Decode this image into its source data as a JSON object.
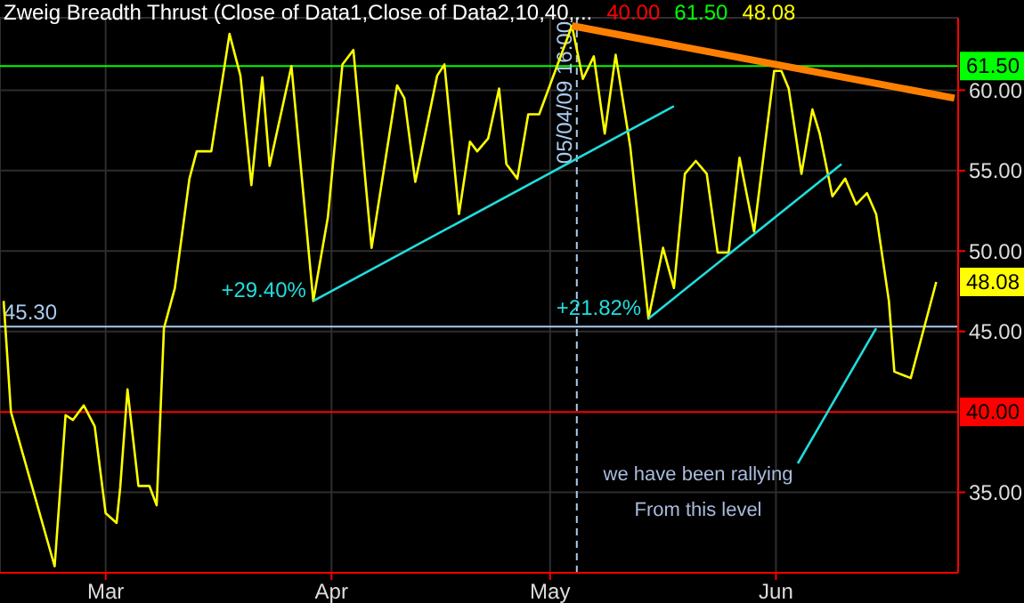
{
  "chart_data": {
    "type": "line",
    "title": "Zweig Breadth Thrust (Close of Data1,Close of Data2,10,40,...",
    "xlim": [
      "--02-14T12:00",
      "--06-26"
    ],
    "xticks": [
      {
        "value": "--03-01",
        "label": "Mar"
      },
      {
        "value": "--04-01",
        "label": "Apr"
      },
      {
        "value": "--05-01",
        "label": "May"
      },
      {
        "value": "--06-01",
        "label": "Jun"
      }
    ],
    "ylim": [
      30,
      64.5
    ],
    "yticks": [
      {
        "value": 35,
        "label": "35.00"
      },
      {
        "value": 45,
        "label": "45.00"
      },
      {
        "value": 50,
        "label": "50.00"
      },
      {
        "value": 55,
        "label": "55.00"
      },
      {
        "value": 60,
        "label": "60.00"
      }
    ],
    "grid": true,
    "marker": "none",
    "line_style": "solid",
    "series": [
      {
        "color": "#ffff00",
        "x": [
          "--02-15",
          "--02-16",
          "--02-22",
          "--02-23T12:00",
          "--02-24T12:00",
          "--02-26",
          "--02-27T12:00",
          "--03-01",
          "--03-02T12:00",
          "--03-03",
          "--03-04",
          "--03-05T12:00",
          "--03-07",
          "--03-08",
          "--03-09",
          "--03-10T12:00",
          "--03-12T12:00",
          "--03-13T12:00",
          "--03-15T12:00",
          "--03-18",
          "--03-19T12:00",
          "--03-21",
          "--03-22T12:00",
          "--03-23T12:00",
          "--03-26T12:00",
          "--03-29T12:00",
          "--03-31T12:00",
          "--04-02T12:00",
          "--04-04",
          "--04-06T12:00",
          "--04-10",
          "--04-11",
          "--04-12T12:00",
          "--04-15T12:00",
          "--04-16T12:00",
          "--04-18T12:00",
          "--04-20",
          "--04-21",
          "--04-22T12:00",
          "--04-24",
          "--04-25",
          "--04-26T12:00",
          "--04-28",
          "--04-29T12:00",
          "--05-04",
          "--05-05T12:00",
          "--05-07",
          "--05-08T12:00",
          "--05-10",
          "--05-12",
          "--05-14T12:00",
          "--05-16T12:00",
          "--05-18",
          "--05-19T12:00",
          "--05-21",
          "--05-22T12:00",
          "--05-24",
          "--05-25T12:00",
          "--05-27",
          "--05-29",
          "--05-31T18:00",
          "--06-01T18:00",
          "--06-02T18:00",
          "--06-04T12:00",
          "--06-06",
          "--06-07",
          "--06-08T18:00",
          "--06-10T12:00",
          "--06-12",
          "--06-13T12:00",
          "--06-14T18:00",
          "--06-16T12:00",
          "--06-17T06:00",
          "--06-19T12:00",
          "--06-23"
        ],
        "values": [
          46.9,
          40.0,
          30.4,
          39.8,
          39.5,
          40.4,
          39.1,
          33.7,
          33.1,
          35.3,
          41.4,
          35.4,
          35.4,
          34.2,
          45.2,
          47.7,
          54.5,
          56.2,
          56.2,
          63.5,
          60.9,
          54.1,
          60.8,
          55.3,
          61.5,
          46.9,
          52.1,
          61.6,
          62.5,
          50.2,
          60.3,
          59.5,
          54.3,
          60.9,
          61.6,
          52.3,
          56.8,
          56.2,
          57.0,
          60.1,
          55.4,
          54.5,
          58.5,
          58.5,
          64.0,
          60.7,
          62.1,
          57.3,
          62.2,
          56.5,
          45.8,
          50.2,
          47.7,
          54.8,
          55.6,
          54.8,
          49.9,
          49.9,
          55.8,
          51.2,
          61.2,
          61.2,
          60.1,
          54.8,
          58.8,
          57.3,
          53.4,
          54.5,
          52.9,
          53.6,
          52.3,
          46.9,
          42.5,
          42.1,
          48.08
        ],
        "value_labels": [
          null,
          null,
          null,
          null,
          null,
          null,
          null,
          null,
          null,
          null,
          null,
          null,
          null,
          null,
          null,
          null,
          null,
          null,
          null,
          null,
          null,
          null,
          null,
          null,
          null,
          null,
          null,
          null,
          null,
          null,
          null,
          null,
          null,
          null,
          null,
          null,
          null,
          null,
          null,
          null,
          null,
          null,
          null,
          null,
          null,
          null,
          null,
          null,
          null,
          null,
          null,
          null,
          null,
          null,
          null,
          null,
          null,
          null,
          null,
          null,
          null,
          null,
          null,
          null,
          null,
          null,
          null,
          null,
          null,
          null,
          null,
          null,
          null,
          null,
          "48.08"
        ]
      },
      {
        "color": "#22dddd",
        "x": [
          "--03-29T12:00",
          "--05-18"
        ],
        "values": [
          46.9,
          59.0
        ]
      },
      {
        "color": "#22dddd",
        "x": [
          "--05-14T12:00",
          "--06-10"
        ],
        "values": [
          45.8,
          55.4
        ]
      },
      {
        "color": "#22dddd",
        "x": [
          "--06-04",
          "--06-14T18:00"
        ],
        "values": [
          36.8,
          45.2
        ]
      },
      {
        "color": "#ff8000",
        "x": [
          "--05-04",
          "--06-25T12:00"
        ],
        "values": [
          64.0,
          59.5
        ]
      }
    ],
    "ref_lines": [
      {
        "axis": "y",
        "value": 40,
        "label": "40.00",
        "color": "#ff0000"
      },
      {
        "axis": "y",
        "value": 61.5,
        "label": "61.50",
        "color": "#00ff00"
      },
      {
        "axis": "y",
        "value": 45.3,
        "label": "45.30",
        "color": "#aaccee"
      },
      {
        "axis": "x",
        "value": "--05-04T16:00",
        "label": "05/04/09 16:00",
        "color": "#aaccee",
        "line_style": "dashed"
      }
    ],
    "annotations": [
      {
        "text": "+29.40%",
        "x": "--03-29T12:00",
        "y": 46.9
      },
      {
        "text": "+21.82%",
        "x": "--05-14T12:00",
        "y": 45.8
      },
      "we have been rallying",
      "From this level"
    ]
  }
}
